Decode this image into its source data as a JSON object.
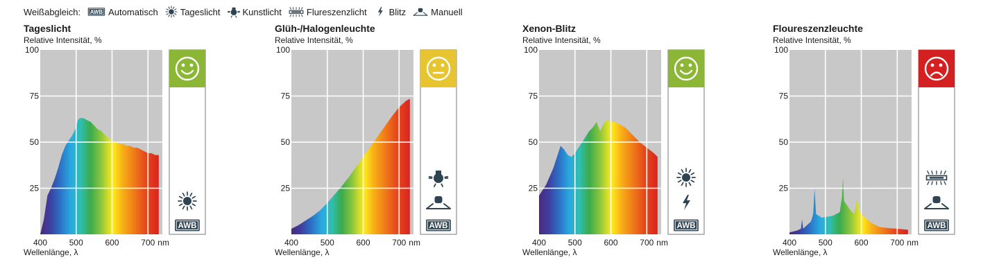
{
  "legend": {
    "title": "Weißabgleich:",
    "items": [
      {
        "icon": "awb-icon",
        "label": "Automatisch"
      },
      {
        "icon": "sun-icon",
        "label": "Tageslicht"
      },
      {
        "icon": "bulb-icon",
        "label": "Kunstlicht"
      },
      {
        "icon": "fluorescent-icon",
        "label": "Flureszenzlicht"
      },
      {
        "icon": "flash-icon",
        "label": "Blitz"
      },
      {
        "icon": "manual-icon",
        "label": "Manuell"
      }
    ]
  },
  "colors": {
    "plot_bg": "#c8c8c8",
    "good": "#8cb635",
    "neutral": "#e6c531",
    "bad": "#d42020",
    "icon": "#2f4452"
  },
  "chart_data": [
    {
      "type": "area",
      "title": "Tageslicht",
      "ylabel": "Relative Intensität, %",
      "xlabel": "Wellenlänge, λ",
      "x_unit": "nm",
      "xlim": [
        400,
        740
      ],
      "ylim": [
        0,
        100
      ],
      "xticks": [
        400,
        500,
        600,
        700
      ],
      "yticks": [
        25,
        50,
        75,
        100
      ],
      "x": [
        400,
        410,
        420,
        430,
        440,
        450,
        460,
        470,
        480,
        490,
        500,
        505,
        510,
        520,
        530,
        540,
        550,
        560,
        570,
        580,
        590,
        600,
        610,
        620,
        630,
        640,
        650,
        660,
        670,
        680,
        690,
        700,
        710,
        720,
        730
      ],
      "y": [
        0,
        8,
        21,
        25,
        30,
        36,
        43,
        48,
        51,
        54,
        58,
        62,
        63,
        63,
        62,
        61,
        59,
        57,
        56,
        54,
        52,
        51,
        50,
        49,
        49,
        48,
        48,
        47,
        47,
        46,
        45,
        44,
        44,
        43,
        43
      ],
      "rating": "good",
      "icons": [
        "sun-icon",
        "awb-icon"
      ]
    },
    {
      "type": "area",
      "title": "Glüh-/Halogenleuchte",
      "ylabel": "Relative Intensität, %",
      "xlabel": "Wellenlänge, λ",
      "x_unit": "nm",
      "xlim": [
        400,
        740
      ],
      "ylim": [
        0,
        100
      ],
      "xticks": [
        400,
        500,
        600,
        700
      ],
      "yticks": [
        25,
        50,
        75,
        100
      ],
      "x": [
        400,
        420,
        440,
        460,
        480,
        500,
        520,
        540,
        560,
        580,
        600,
        620,
        640,
        660,
        680,
        700,
        720,
        730
      ],
      "y": [
        3,
        5,
        7.5,
        10,
        13,
        17,
        21.5,
        26,
        31,
        36.5,
        42,
        47.5,
        53,
        58.5,
        64,
        69,
        72.5,
        73.5
      ],
      "rating": "neutral",
      "icons": [
        "bulb-icon",
        "manual-icon",
        "awb-icon"
      ]
    },
    {
      "type": "area",
      "title": "Xenon-Blitz",
      "ylabel": "Relative Intensität, %",
      "xlabel": "Wellenlänge, λ",
      "x_unit": "nm",
      "xlim": [
        400,
        740
      ],
      "ylim": [
        0,
        100
      ],
      "xticks": [
        400,
        500,
        600,
        700
      ],
      "yticks": [
        25,
        50,
        75,
        100
      ],
      "x": [
        400,
        420,
        440,
        450,
        460,
        470,
        480,
        490,
        500,
        520,
        540,
        550,
        560,
        570,
        580,
        590,
        600,
        610,
        620,
        630,
        640,
        660,
        680,
        700,
        720,
        730
      ],
      "y": [
        21,
        27,
        36,
        42,
        48,
        46,
        43,
        42,
        44,
        50,
        56,
        58,
        61,
        56,
        60,
        62,
        61,
        61,
        60,
        59,
        58,
        54,
        50,
        47,
        44,
        42
      ],
      "rating": "good",
      "icons": [
        "sun-icon",
        "flash-icon",
        "awb-icon"
      ]
    },
    {
      "type": "area",
      "title": "Floureszenzleuchte",
      "ylabel": "Relative Intensität, %",
      "xlabel": "Wellenlänge, λ",
      "x_unit": "nm",
      "xlim": [
        400,
        740
      ],
      "ylim": [
        0,
        100
      ],
      "xticks": [
        400,
        500,
        600,
        700
      ],
      "yticks": [
        25,
        50,
        75,
        100
      ],
      "x": [
        400,
        420,
        432,
        435,
        438,
        460,
        466,
        470,
        474,
        490,
        520,
        540,
        546,
        549,
        552,
        570,
        580,
        584,
        588,
        592,
        596,
        610,
        630,
        650,
        670,
        700,
        730
      ],
      "y": [
        1,
        2,
        3,
        8,
        3,
        7,
        11,
        25,
        11,
        9,
        10,
        12,
        20,
        30.5,
        18,
        13,
        11,
        14,
        19.5,
        15,
        12,
        9,
        6,
        4,
        3.5,
        3,
        2.5
      ],
      "rating": "bad",
      "icons": [
        "fluorescent-icon",
        "manual-icon",
        "awb-icon"
      ]
    }
  ]
}
